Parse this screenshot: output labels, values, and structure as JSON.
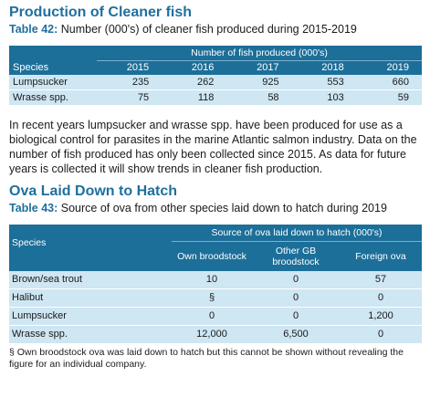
{
  "section1": {
    "title": "Production of Cleaner fish",
    "caption_label": "Table 42:",
    "caption_text": " Number (000's) of cleaner fish produced during 2015-2019"
  },
  "table42": {
    "span_header": "Number of fish produced (000's)",
    "col_species": "Species",
    "years": [
      "2015",
      "2016",
      "2017",
      "2018",
      "2019"
    ],
    "rows": [
      {
        "species": "Lumpsucker",
        "values": [
          "235",
          "262",
          "925",
          "553",
          "660"
        ]
      },
      {
        "species": "Wrasse spp.",
        "values": [
          "75",
          "118",
          "58",
          "103",
          "59"
        ]
      }
    ]
  },
  "paragraph": "In recent years lumpsucker and wrasse spp. have been produced for use as a biological control for parasites in the marine Atlantic salmon industry. Data on the number of fish produced has only been collected since 2015. As data for future years is collected it will show trends in cleaner fish production.",
  "section2": {
    "title": "Ova Laid Down to Hatch",
    "caption_label": "Table 43:",
    "caption_text": " Source of ova from other species laid down to hatch during 2019"
  },
  "table43": {
    "col_species": "Species",
    "span_header": "Source of ova laid down to hatch (000's)",
    "cols": [
      "Own broodstock",
      "Other GB broodstock",
      "Foreign ova"
    ],
    "rows": [
      {
        "species": "Brown/sea trout",
        "values": [
          "10",
          "0",
          "57"
        ]
      },
      {
        "species": "Halibut",
        "values": [
          "§",
          "0",
          "0"
        ]
      },
      {
        "species": "Lumpsucker",
        "values": [
          "0",
          "0",
          "1,200"
        ]
      },
      {
        "species": "Wrasse spp.",
        "values": [
          "12,000",
          "6,500",
          "0"
        ]
      }
    ],
    "footnote": "§ Own broodstock ova was laid down to hatch but this cannot be shown without revealing the figure for an individual company."
  }
}
